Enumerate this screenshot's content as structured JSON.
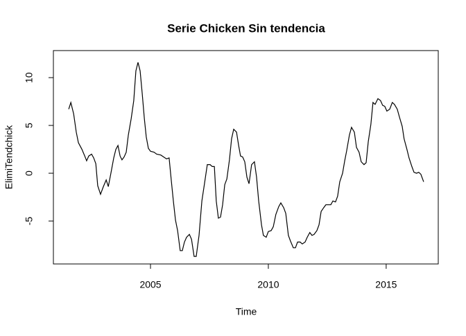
{
  "chart_data": {
    "type": "line",
    "title": "Serie Chicken Sin tendencia",
    "x_label": "Time",
    "y_label": "ElimiTendchick",
    "xlim": [
      2000.88,
      2017.21
    ],
    "ylim": [
      -9.49,
      12.83
    ],
    "xticks": [
      2005,
      2010,
      2015
    ],
    "yticks": [
      -5,
      0,
      5,
      10
    ],
    "series": [
      {
        "color": "#000000",
        "x": [
          2001.53,
          2001.62,
          2001.74,
          2001.85,
          2001.94,
          2002.09,
          2002.21,
          2002.29,
          2002.38,
          2002.5,
          2002.59,
          2002.68,
          2002.76,
          2002.88,
          2003.0,
          2003.12,
          2003.21,
          2003.32,
          2003.44,
          2003.53,
          2003.62,
          2003.71,
          2003.79,
          2003.88,
          2003.97,
          2004.06,
          2004.18,
          2004.29,
          2004.38,
          2004.47,
          2004.56,
          2004.65,
          2004.74,
          2004.82,
          2004.91,
          2005.0,
          2005.15,
          2005.26,
          2005.44,
          2005.56,
          2005.68,
          2005.79,
          2005.88,
          2005.97,
          2006.06,
          2006.15,
          2006.26,
          2006.35,
          2006.44,
          2006.53,
          2006.65,
          2006.74,
          2006.85,
          2006.94,
          2007.06,
          2007.18,
          2007.29,
          2007.41,
          2007.53,
          2007.62,
          2007.71,
          2007.79,
          2007.88,
          2007.97,
          2008.06,
          2008.15,
          2008.24,
          2008.35,
          2008.44,
          2008.53,
          2008.65,
          2008.74,
          2008.82,
          2008.91,
          2009.0,
          2009.09,
          2009.18,
          2009.29,
          2009.41,
          2009.5,
          2009.59,
          2009.71,
          2009.79,
          2009.91,
          2010.0,
          2010.12,
          2010.21,
          2010.32,
          2010.44,
          2010.53,
          2010.65,
          2010.74,
          2010.85,
          2010.94,
          2011.06,
          2011.15,
          2011.24,
          2011.35,
          2011.44,
          2011.56,
          2011.65,
          2011.76,
          2011.85,
          2011.94,
          2012.06,
          2012.15,
          2012.24,
          2012.35,
          2012.44,
          2012.53,
          2012.65,
          2012.74,
          2012.85,
          2012.94,
          2013.03,
          2013.15,
          2013.24,
          2013.32,
          2013.44,
          2013.53,
          2013.65,
          2013.74,
          2013.85,
          2013.94,
          2014.06,
          2014.15,
          2014.24,
          2014.35,
          2014.44,
          2014.53,
          2014.65,
          2014.76,
          2014.85,
          2014.94,
          2015.03,
          2015.15,
          2015.26,
          2015.35,
          2015.47,
          2015.56,
          2015.68,
          2015.76,
          2015.88,
          2015.97,
          2016.09,
          2016.18,
          2016.29,
          2016.38,
          2016.47,
          2016.59
        ],
        "values": [
          6.7,
          7.4,
          6.2,
          4.3,
          3.2,
          2.5,
          1.8,
          1.3,
          1.8,
          2.0,
          1.6,
          1.0,
          -1.3,
          -2.2,
          -1.4,
          -0.7,
          -1.4,
          0,
          1.6,
          2.5,
          2.9,
          1.8,
          1.4,
          1.7,
          2.2,
          4.0,
          5.7,
          7.6,
          10.7,
          11.6,
          10.7,
          8.3,
          5.7,
          3.8,
          2.6,
          2.3,
          2.2,
          2.0,
          1.9,
          1.7,
          1.5,
          1.6,
          -0.7,
          -2.9,
          -4.9,
          -6.0,
          -8.1,
          -8.1,
          -7.2,
          -6.7,
          -6.4,
          -6.9,
          -8.7,
          -8.7,
          -6.5,
          -2.9,
          -1.1,
          0.9,
          0.9,
          0.7,
          0.7,
          -2.9,
          -4.7,
          -4.6,
          -3.3,
          -1.2,
          -0.6,
          1.4,
          3.6,
          4.6,
          4.3,
          2.9,
          1.8,
          1.7,
          1.2,
          -0.4,
          -1.1,
          0.9,
          1.2,
          -0.4,
          -2.9,
          -5.4,
          -6.5,
          -6.7,
          -6.1,
          -6.0,
          -5.6,
          -4.3,
          -3.5,
          -3.1,
          -3.6,
          -4.2,
          -6.5,
          -7.1,
          -7.8,
          -7.8,
          -7.2,
          -7.2,
          -7.4,
          -7.2,
          -6.7,
          -6.2,
          -6.5,
          -6.4,
          -6.0,
          -5.4,
          -4.0,
          -3.6,
          -3.3,
          -3.3,
          -3.3,
          -2.9,
          -3.0,
          -2.4,
          -0.9,
          0,
          1.3,
          2.3,
          4.0,
          4.8,
          4.3,
          2.7,
          2.2,
          1.2,
          0.9,
          1.1,
          3.3,
          5.1,
          7.4,
          7.2,
          7.8,
          7.6,
          7.1,
          7.0,
          6.5,
          6.7,
          7.4,
          7.2,
          6.7,
          5.9,
          4.9,
          3.6,
          2.5,
          1.6,
          0.7,
          0.1,
          0,
          0.1,
          -0.1,
          -0.9
        ]
      }
    ]
  }
}
